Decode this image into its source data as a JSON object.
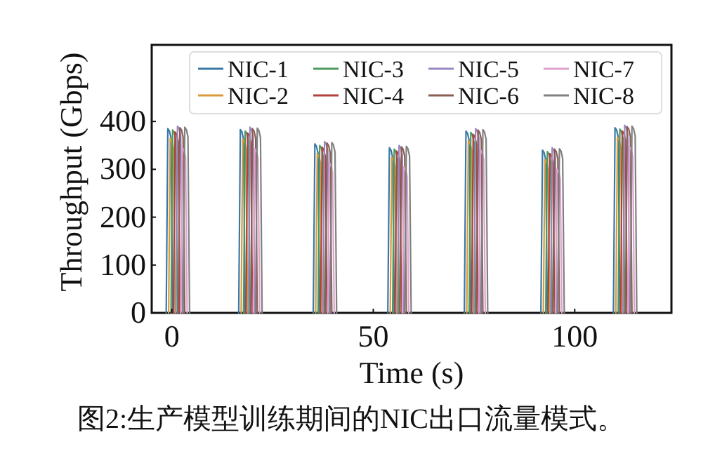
{
  "chart_data": {
    "type": "line",
    "xlabel": "Time (s)",
    "ylabel": "Throughput (Gbps)",
    "annotations": [
      "图2:生产模型训练期间的NIC出口流量模式。"
    ],
    "xlim": [
      -5,
      124
    ],
    "xticks": [
      0,
      50,
      100
    ],
    "ylim": [
      0,
      560
    ],
    "yticks": [
      0,
      100,
      200,
      300,
      400
    ],
    "grid": false,
    "legend": "top",
    "marker": "none",
    "line_style": "solid",
    "series": [
      {
        "name": "NIC-1",
        "color": "#3b78a8",
        "x": [
          -1.4,
          -1,
          -0.6,
          -0.2,
          0.2,
          null,
          16.6,
          17,
          17.4,
          17.8,
          18.2,
          null,
          35.1,
          35.5,
          35.9,
          36.3,
          36.7,
          null,
          53.6,
          54,
          54.4,
          54.8,
          55.2,
          null,
          72.6,
          73,
          73.4,
          73.8,
          74.2,
          null,
          91.6,
          92,
          92.4,
          92.8,
          93.2,
          null,
          109.6,
          110,
          110.4,
          110.8,
          111.2
        ],
        "values": [
          0,
          385,
          380,
          365,
          0,
          null,
          0,
          383,
          378,
          363,
          0,
          null,
          0,
          353,
          348,
          333,
          0,
          null,
          0,
          345,
          340,
          325,
          0,
          null,
          0,
          380,
          375,
          360,
          0,
          null,
          0,
          340,
          335,
          320,
          0,
          null,
          0,
          387,
          382,
          367,
          0
        ]
      },
      {
        "name": "NIC-2",
        "color": "#d99a3c",
        "x": [
          -0.8,
          -0.4,
          0,
          0.4,
          0.8,
          null,
          17.2,
          17.6,
          18,
          18.4,
          18.8,
          null,
          35.7,
          36.1,
          36.5,
          36.9,
          37.3,
          null,
          54.2,
          54.6,
          55,
          55.4,
          55.8,
          null,
          73.2,
          73.6,
          74,
          74.4,
          74.8,
          null,
          92.2,
          92.6,
          93,
          93.4,
          93.8,
          null,
          110.2,
          110.6,
          111,
          111.4,
          111.8
        ],
        "values": [
          0,
          365,
          360,
          345,
          0,
          null,
          0,
          363,
          358,
          343,
          0,
          null,
          0,
          333,
          328,
          313,
          0,
          null,
          0,
          325,
          320,
          305,
          0,
          null,
          0,
          360,
          355,
          340,
          0,
          null,
          0,
          320,
          315,
          300,
          0,
          null,
          0,
          367,
          362,
          347,
          0
        ]
      },
      {
        "name": "NIC-3",
        "color": "#4a9a5c",
        "x": [
          -0.2,
          0.2,
          0.6,
          1,
          1.4,
          null,
          17.8,
          18.2,
          18.6,
          19,
          19.4,
          null,
          36.3,
          36.7,
          37.1,
          37.5,
          37.9,
          null,
          54.8,
          55.2,
          55.6,
          56,
          56.4,
          null,
          73.8,
          74.2,
          74.6,
          75,
          75.4,
          null,
          92.8,
          93.2,
          93.6,
          94,
          94.4,
          null,
          110.8,
          111.2,
          111.6,
          112,
          112.4
        ],
        "values": [
          0,
          382,
          377,
          362,
          0,
          null,
          0,
          380,
          375,
          360,
          0,
          null,
          0,
          350,
          345,
          330,
          0,
          null,
          0,
          342,
          337,
          322,
          0,
          null,
          0,
          377,
          372,
          357,
          0,
          null,
          0,
          337,
          332,
          317,
          0,
          null,
          0,
          384,
          379,
          364,
          0
        ]
      },
      {
        "name": "NIC-4",
        "color": "#b2403c",
        "x": [
          0.4,
          0.8,
          1.2,
          1.6,
          2,
          null,
          18.4,
          18.8,
          19.2,
          19.6,
          20,
          null,
          36.9,
          37.3,
          37.7,
          38.1,
          38.5,
          null,
          55.4,
          55.8,
          56.2,
          56.6,
          57,
          null,
          74.4,
          74.8,
          75.2,
          75.6,
          76,
          null,
          93.4,
          93.8,
          94.2,
          94.6,
          95,
          null,
          111.4,
          111.8,
          112.2,
          112.6,
          113
        ],
        "values": [
          0,
          378,
          373,
          358,
          0,
          null,
          0,
          376,
          371,
          356,
          0,
          null,
          0,
          346,
          341,
          326,
          0,
          null,
          0,
          338,
          333,
          318,
          0,
          null,
          0,
          373,
          368,
          353,
          0,
          null,
          0,
          333,
          328,
          313,
          0,
          null,
          0,
          380,
          375,
          360,
          0
        ]
      },
      {
        "name": "NIC-5",
        "color": "#9a86c0",
        "x": [
          1,
          1.4,
          1.8,
          2.2,
          2.6,
          null,
          19,
          19.4,
          19.8,
          20.2,
          20.6,
          null,
          37.5,
          37.9,
          38.3,
          38.7,
          39.1,
          null,
          56,
          56.4,
          56.8,
          57.2,
          57.6,
          null,
          75,
          75.4,
          75.8,
          76.2,
          76.6,
          null,
          94,
          94.4,
          94.8,
          95.2,
          95.6,
          null,
          112,
          112.4,
          112.8,
          113.2,
          113.6
        ],
        "values": [
          0,
          390,
          385,
          370,
          0,
          null,
          0,
          388,
          383,
          368,
          0,
          null,
          0,
          358,
          353,
          338,
          0,
          null,
          0,
          350,
          345,
          330,
          0,
          null,
          0,
          385,
          380,
          365,
          0,
          null,
          0,
          345,
          340,
          325,
          0,
          null,
          0,
          392,
          387,
          372,
          0
        ]
      },
      {
        "name": "NIC-6",
        "color": "#8a5e55",
        "x": [
          1.6,
          2,
          2.4,
          2.8,
          3.2,
          null,
          19.6,
          20,
          20.4,
          20.8,
          21.2,
          null,
          38.1,
          38.5,
          38.9,
          39.3,
          39.7,
          null,
          56.6,
          57,
          57.4,
          57.8,
          58.2,
          null,
          75.6,
          76,
          76.4,
          76.8,
          77.2,
          null,
          94.6,
          95,
          95.4,
          95.8,
          96.2,
          null,
          112.6,
          113,
          113.4,
          113.8,
          114.2
        ],
        "values": [
          0,
          387,
          382,
          367,
          0,
          null,
          0,
          385,
          380,
          365,
          0,
          null,
          0,
          355,
          350,
          335,
          0,
          null,
          0,
          347,
          342,
          327,
          0,
          null,
          0,
          382,
          377,
          362,
          0,
          null,
          0,
          342,
          337,
          322,
          0,
          null,
          0,
          389,
          384,
          369,
          0
        ]
      },
      {
        "name": "NIC-7",
        "color": "#e0a2cc",
        "x": [
          2.2,
          2.6,
          3,
          3.4,
          3.8,
          null,
          20.2,
          20.6,
          21,
          21.4,
          21.8,
          null,
          38.7,
          39.1,
          39.5,
          39.9,
          40.3,
          null,
          57.2,
          57.6,
          58,
          58.4,
          58.8,
          null,
          76.2,
          76.6,
          77,
          77.4,
          77.8,
          null,
          95.2,
          95.6,
          96,
          96.4,
          96.8,
          null,
          113.2,
          113.6,
          114,
          114.4,
          114.8
        ],
        "values": [
          0,
          345,
          340,
          325,
          0,
          null,
          0,
          343,
          338,
          323,
          0,
          null,
          0,
          313,
          308,
          293,
          0,
          null,
          0,
          305,
          300,
          285,
          0,
          null,
          0,
          340,
          335,
          320,
          0,
          null,
          0,
          300,
          295,
          280,
          0,
          null,
          0,
          347,
          342,
          327,
          0
        ]
      },
      {
        "name": "NIC-8",
        "color": "#808080",
        "x": [
          2.8,
          3.2,
          3.6,
          4,
          4.4,
          null,
          20.8,
          21.2,
          21.6,
          22,
          22.4,
          null,
          39.3,
          39.7,
          40.1,
          40.5,
          40.9,
          null,
          57.8,
          58.2,
          58.6,
          59,
          59.4,
          null,
          76.8,
          77.2,
          77.6,
          78,
          78.4,
          null,
          95.8,
          96.2,
          96.6,
          97,
          97.4,
          null,
          113.8,
          114.2,
          114.6,
          115,
          115.4
        ],
        "values": [
          0,
          388,
          383,
          368,
          0,
          null,
          0,
          386,
          381,
          366,
          0,
          null,
          0,
          356,
          351,
          336,
          0,
          null,
          0,
          348,
          343,
          328,
          0,
          null,
          0,
          383,
          378,
          363,
          0,
          null,
          0,
          343,
          338,
          323,
          0,
          null,
          0,
          390,
          385,
          370,
          0
        ]
      }
    ]
  }
}
